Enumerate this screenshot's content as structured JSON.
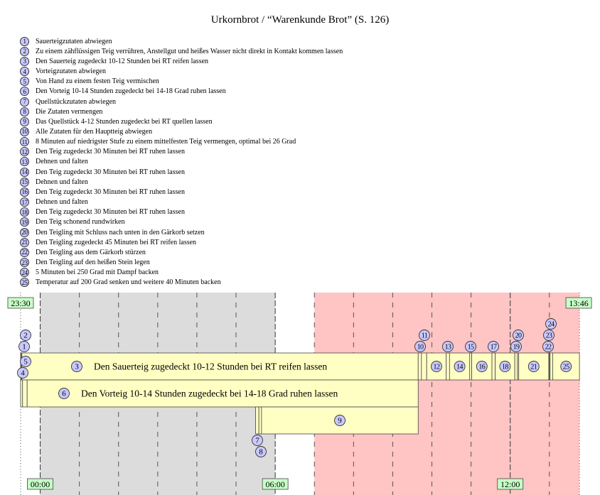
{
  "title": "Urkornbrot / “Warenkunde Brot” (S. 126)",
  "steps": [
    {
      "n": "1",
      "text": "Sauerteigzutaten abwiegen"
    },
    {
      "n": "2",
      "text": "Zu einem zähflüssigen Teig verrühren, Anstellgut und heißes Wasser nicht direkt in Kontakt kommen lassen"
    },
    {
      "n": "3",
      "text": "Den Sauerteig zugedeckt 10-12 Stunden bei RT reifen lassen"
    },
    {
      "n": "4",
      "text": "Vorteigzutaten abwiegen"
    },
    {
      "n": "5",
      "text": "Von Hand zu einem festen Teig vermischen"
    },
    {
      "n": "6",
      "text": "Den Vorteig 10-14 Stunden zugedeckt bei 14-18 Grad ruhen lassen"
    },
    {
      "n": "7",
      "text": "Quellstückzutaten abwiegen"
    },
    {
      "n": "8",
      "text": "Die Zutaten vermengen"
    },
    {
      "n": "9",
      "text": "Das Quellstück 4-12 Stunden zugedeckt bei RT quellen lassen"
    },
    {
      "n": "10",
      "text": "Alle Zutaten für den Hauptteig abwiegen"
    },
    {
      "n": "11",
      "text": "8 Minuten auf niedrigster Stufe zu einem mittelfesten Teig vermengen, optimal bei 26 Grad"
    },
    {
      "n": "12",
      "text": "Den Teig zugedeckt 30 Minuten bei RT ruhen lassen"
    },
    {
      "n": "13",
      "text": "Dehnen und falten"
    },
    {
      "n": "14",
      "text": "Den Teig zugedeckt 30 Minuten bei RT ruhen lassen"
    },
    {
      "n": "15",
      "text": "Dehnen und falten"
    },
    {
      "n": "16",
      "text": "Den Teig zugedeckt 30 Minuten bei RT ruhen lassen"
    },
    {
      "n": "17",
      "text": "Dehnen und falten"
    },
    {
      "n": "18",
      "text": "Den Teig zugedeckt 30 Minuten bei RT ruhen lassen"
    },
    {
      "n": "19",
      "text": "Den Teig schonend rundwirken"
    },
    {
      "n": "20",
      "text": "Den Teigling mit Schluss nach unten in den Gärkorb setzen"
    },
    {
      "n": "21",
      "text": "Den Teigling zugedeckt 45 Minuten bei RT reifen lassen"
    },
    {
      "n": "22",
      "text": "Den Teigling aus dem Gärkorb stürzen"
    },
    {
      "n": "23",
      "text": "Den Teigling auf den heißen Stein legen"
    },
    {
      "n": "24",
      "text": "5 Minuten bei 250 Grad mit Dampf backen"
    },
    {
      "n": "25",
      "text": "Temperatur auf 200 Grad senken und weitere 40 Minuten backen"
    }
  ],
  "timeline": {
    "unit": "minutes since 23:30",
    "start_label": "23:30",
    "end_label": "13:46",
    "end_minute": 856,
    "hour_labels": [
      {
        "label": "00:00",
        "minute": 30
      },
      {
        "label": "06:00",
        "minute": 390
      },
      {
        "label": "12:00",
        "minute": 750
      }
    ],
    "night_period": {
      "start": 30,
      "end": 390
    },
    "day_period": {
      "start": 450,
      "end": 856
    },
    "segments": [
      {
        "step": "1",
        "row": 1,
        "start": 0,
        "end": 1
      },
      {
        "step": "2",
        "row": 1,
        "start": 1,
        "end": 2
      },
      {
        "step": "3",
        "row": 1,
        "start": 2,
        "end": 609
      },
      {
        "step": "10",
        "row": 1,
        "start": 609,
        "end": 614
      },
      {
        "step": "11",
        "row": 1,
        "start": 614,
        "end": 622
      },
      {
        "step": "12",
        "row": 1,
        "start": 622,
        "end": 652
      },
      {
        "step": "13",
        "row": 1,
        "start": 652,
        "end": 657
      },
      {
        "step": "14",
        "row": 1,
        "start": 657,
        "end": 688
      },
      {
        "step": "15",
        "row": 1,
        "start": 688,
        "end": 691
      },
      {
        "step": "16",
        "row": 1,
        "start": 691,
        "end": 722
      },
      {
        "step": "17",
        "row": 1,
        "start": 722,
        "end": 727
      },
      {
        "step": "18",
        "row": 1,
        "start": 727,
        "end": 757
      },
      {
        "step": "19",
        "row": 1,
        "start": 757,
        "end": 761
      },
      {
        "step": "20",
        "row": 1,
        "start": 761,
        "end": 763
      },
      {
        "step": "21",
        "row": 1,
        "start": 763,
        "end": 809
      },
      {
        "step": "22",
        "row": 1,
        "start": 809,
        "end": 810
      },
      {
        "step": "23",
        "row": 1,
        "start": 810,
        "end": 811
      },
      {
        "step": "24",
        "row": 1,
        "start": 811,
        "end": 815
      },
      {
        "step": "25",
        "row": 1,
        "start": 815,
        "end": 856
      },
      {
        "step": "4",
        "row": 2,
        "start": 0,
        "end": 3
      },
      {
        "step": "5",
        "row": 2,
        "start": 3,
        "end": 10
      },
      {
        "step": "6",
        "row": 2,
        "start": 10,
        "end": 609
      },
      {
        "step": "7",
        "row": 3,
        "start": 360,
        "end": 365
      },
      {
        "step": "8",
        "row": 3,
        "start": 365,
        "end": 369
      },
      {
        "step": "9",
        "row": 3,
        "start": 369,
        "end": 609
      }
    ]
  },
  "colors": {
    "bar": "#ffffc4",
    "night": "#dcdcdc",
    "day": "#ffc4c4",
    "badge": "#c8c8ff",
    "time_label": "#c8ffc8"
  }
}
